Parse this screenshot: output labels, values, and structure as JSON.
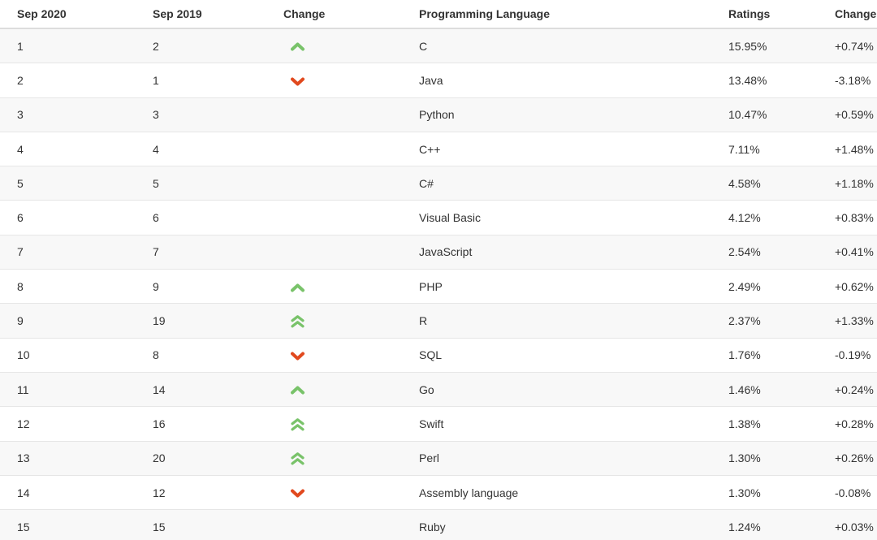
{
  "table": {
    "columns": [
      {
        "key": "rank_sep_2020",
        "label": "Sep 2020"
      },
      {
        "key": "rank_sep_2019",
        "label": "Sep 2019"
      },
      {
        "key": "change_indicator",
        "label": "Change"
      },
      {
        "key": "language",
        "label": "Programming Language"
      },
      {
        "key": "ratings",
        "label": "Ratings"
      },
      {
        "key": "change_pct",
        "label": "Change"
      }
    ],
    "rows": [
      {
        "rank_sep_2020": "1",
        "rank_sep_2019": "2",
        "change_indicator": "up",
        "language": "C",
        "ratings": "15.95%",
        "change_pct": "+0.74%"
      },
      {
        "rank_sep_2020": "2",
        "rank_sep_2019": "1",
        "change_indicator": "down",
        "language": "Java",
        "ratings": "13.48%",
        "change_pct": "-3.18%"
      },
      {
        "rank_sep_2020": "3",
        "rank_sep_2019": "3",
        "change_indicator": "",
        "language": "Python",
        "ratings": "10.47%",
        "change_pct": "+0.59%"
      },
      {
        "rank_sep_2020": "4",
        "rank_sep_2019": "4",
        "change_indicator": "",
        "language": "C++",
        "ratings": "7.11%",
        "change_pct": "+1.48%"
      },
      {
        "rank_sep_2020": "5",
        "rank_sep_2019": "5",
        "change_indicator": "",
        "language": "C#",
        "ratings": "4.58%",
        "change_pct": "+1.18%"
      },
      {
        "rank_sep_2020": "6",
        "rank_sep_2019": "6",
        "change_indicator": "",
        "language": "Visual Basic",
        "ratings": "4.12%",
        "change_pct": "+0.83%"
      },
      {
        "rank_sep_2020": "7",
        "rank_sep_2019": "7",
        "change_indicator": "",
        "language": "JavaScript",
        "ratings": "2.54%",
        "change_pct": "+0.41%"
      },
      {
        "rank_sep_2020": "8",
        "rank_sep_2019": "9",
        "change_indicator": "up",
        "language": "PHP",
        "ratings": "2.49%",
        "change_pct": "+0.62%"
      },
      {
        "rank_sep_2020": "9",
        "rank_sep_2019": "19",
        "change_indicator": "up2",
        "language": "R",
        "ratings": "2.37%",
        "change_pct": "+1.33%"
      },
      {
        "rank_sep_2020": "10",
        "rank_sep_2019": "8",
        "change_indicator": "down",
        "language": "SQL",
        "ratings": "1.76%",
        "change_pct": "-0.19%"
      },
      {
        "rank_sep_2020": "11",
        "rank_sep_2019": "14",
        "change_indicator": "up",
        "language": "Go",
        "ratings": "1.46%",
        "change_pct": "+0.24%"
      },
      {
        "rank_sep_2020": "12",
        "rank_sep_2019": "16",
        "change_indicator": "up2",
        "language": "Swift",
        "ratings": "1.38%",
        "change_pct": "+0.28%"
      },
      {
        "rank_sep_2020": "13",
        "rank_sep_2019": "20",
        "change_indicator": "up2",
        "language": "Perl",
        "ratings": "1.30%",
        "change_pct": "+0.26%"
      },
      {
        "rank_sep_2020": "14",
        "rank_sep_2019": "12",
        "change_indicator": "down",
        "language": "Assembly language",
        "ratings": "1.30%",
        "change_pct": "-0.08%"
      },
      {
        "rank_sep_2020": "15",
        "rank_sep_2019": "15",
        "change_indicator": "",
        "language": "Ruby",
        "ratings": "1.24%",
        "change_pct": "+0.03%"
      }
    ]
  },
  "icons": {
    "up": "chevron-up-icon",
    "up2": "double-chevron-up-icon",
    "down": "chevron-down-icon"
  },
  "colors": {
    "up_arrow": "#79c36a",
    "down_arrow": "#e1491e",
    "stripe": "#f8f8f8",
    "border": "#e2e2e2",
    "text": "#333333"
  }
}
